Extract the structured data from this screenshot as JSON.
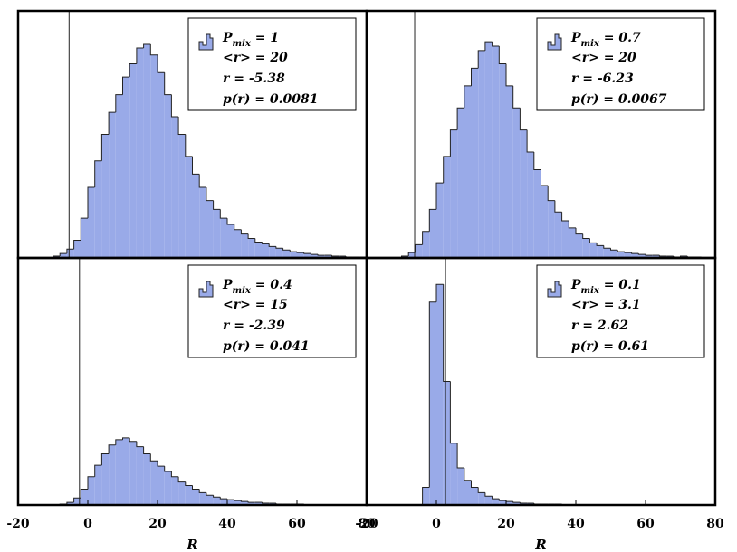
{
  "chart_data": [
    {
      "type": "histogram",
      "color": "#99aae8",
      "bins": [
        -20,
        -18,
        -16,
        -14,
        -12,
        -10,
        -8,
        -6,
        -4,
        -2,
        0,
        2,
        4,
        6,
        8,
        10,
        12,
        14,
        16,
        18,
        20,
        22,
        24,
        26,
        28,
        30,
        32,
        34,
        36,
        38,
        40,
        42,
        44,
        46,
        48,
        50,
        52,
        54,
        56,
        58,
        60,
        62,
        64,
        66,
        68,
        70,
        72,
        74,
        76,
        78,
        80
      ],
      "counts": [
        0,
        0,
        0,
        0,
        0,
        2,
        5,
        10,
        20,
        45,
        80,
        110,
        140,
        165,
        185,
        205,
        220,
        238,
        242,
        230,
        210,
        185,
        160,
        140,
        115,
        95,
        80,
        65,
        55,
        45,
        38,
        32,
        27,
        22,
        18,
        16,
        13,
        11,
        9,
        7,
        6,
        5,
        4,
        3,
        3,
        2,
        2,
        1,
        1,
        1
      ],
      "xlim": [
        -20,
        80
      ],
      "ylim": [
        0,
        280
      ],
      "marker": -5.38,
      "legend": {
        "symbol": "P",
        "subscript": "mix",
        "rest": " = 1",
        "lines": [
          "<r> = 20",
          "r = -5.38",
          "p(r) = 0.0081"
        ]
      }
    },
    {
      "type": "histogram",
      "color": "#99aae8",
      "bins": [
        -20,
        -18,
        -16,
        -14,
        -12,
        -10,
        -8,
        -6,
        -4,
        -2,
        0,
        2,
        4,
        6,
        8,
        10,
        12,
        14,
        16,
        18,
        20,
        22,
        24,
        26,
        28,
        30,
        32,
        34,
        36,
        38,
        40,
        42,
        44,
        46,
        48,
        50,
        52,
        54,
        56,
        58,
        60,
        62,
        64,
        66,
        68,
        70,
        72,
        74,
        76,
        78,
        80
      ],
      "counts": [
        0,
        0,
        0,
        0,
        0,
        2,
        6,
        15,
        30,
        55,
        85,
        115,
        145,
        170,
        195,
        215,
        235,
        245,
        240,
        220,
        195,
        170,
        145,
        120,
        100,
        82,
        65,
        52,
        42,
        34,
        27,
        22,
        17,
        14,
        11,
        9,
        7,
        6,
        5,
        4,
        3,
        3,
        2,
        2,
        1,
        2,
        1,
        1,
        0,
        0
      ],
      "xlim": [
        -20,
        80
      ],
      "ylim": [
        0,
        280
      ],
      "marker": -6.23,
      "legend": {
        "symbol": "P",
        "subscript": "mix",
        "rest": " = 0.7",
        "lines": [
          "<r> = 20",
          "r = -6.23",
          "p(r) = 0.0067"
        ]
      }
    },
    {
      "type": "histogram",
      "color": "#99aae8",
      "bins": [
        -20,
        -18,
        -16,
        -14,
        -12,
        -10,
        -8,
        -6,
        -4,
        -2,
        0,
        2,
        4,
        6,
        8,
        10,
        12,
        14,
        16,
        18,
        20,
        22,
        24,
        26,
        28,
        30,
        32,
        34,
        36,
        38,
        40,
        42,
        44,
        46,
        48,
        50,
        52,
        54,
        56,
        58,
        60,
        62,
        64,
        66,
        68,
        70,
        72,
        74,
        76,
        78,
        80
      ],
      "counts": [
        0,
        0,
        0,
        0,
        0,
        0,
        1,
        3,
        8,
        18,
        32,
        45,
        58,
        68,
        74,
        76,
        72,
        66,
        58,
        50,
        44,
        38,
        32,
        26,
        22,
        18,
        14,
        11,
        9,
        7,
        6,
        5,
        4,
        3,
        3,
        2,
        2,
        1,
        1,
        1,
        1,
        0,
        0,
        0,
        0,
        0,
        0,
        0,
        0,
        0
      ],
      "xlim": [
        -20,
        80
      ],
      "ylim": [
        0,
        280
      ],
      "marker": -2.39,
      "xticks": [
        -20,
        0,
        20,
        40,
        60,
        80
      ],
      "xlabel": "R",
      "legend": {
        "symbol": "P",
        "subscript": "mix",
        "rest": " = 0.4",
        "lines": [
          "<r> = 15",
          "r = -2.39",
          "p(r) = 0.041"
        ]
      }
    },
    {
      "type": "histogram",
      "color": "#99aae8",
      "bins": [
        -20,
        -18,
        -16,
        -14,
        -12,
        -10,
        -8,
        -6,
        -4,
        -2,
        0,
        2,
        4,
        6,
        8,
        10,
        12,
        14,
        16,
        18,
        20,
        22,
        24,
        26,
        28,
        30,
        32,
        34,
        36,
        38,
        40,
        42,
        44,
        46,
        48,
        50,
        52,
        54,
        56,
        58,
        60,
        62,
        64,
        66,
        68,
        70,
        72,
        74,
        76,
        78,
        80
      ],
      "counts": [
        0,
        0,
        0,
        0,
        0,
        0,
        0,
        0,
        20,
        230,
        250,
        140,
        70,
        42,
        28,
        20,
        14,
        10,
        7,
        5,
        4,
        3,
        2,
        2,
        1,
        1,
        1,
        1,
        0,
        0,
        0,
        0,
        0,
        0,
        0,
        0,
        0,
        0,
        0,
        0,
        0,
        0,
        0,
        0,
        0,
        0,
        0,
        0,
        0,
        0
      ],
      "xlim": [
        -20,
        80
      ],
      "ylim": [
        0,
        280
      ],
      "marker": 2.62,
      "xticks": [
        -20,
        0,
        20,
        40,
        60,
        80
      ],
      "xlabel": "R",
      "legend": {
        "symbol": "P",
        "subscript": "mix",
        "rest": " = 0.1",
        "lines": [
          "<r> = 3.1",
          "r = 2.62",
          "p(r) = 0.61"
        ]
      }
    }
  ]
}
